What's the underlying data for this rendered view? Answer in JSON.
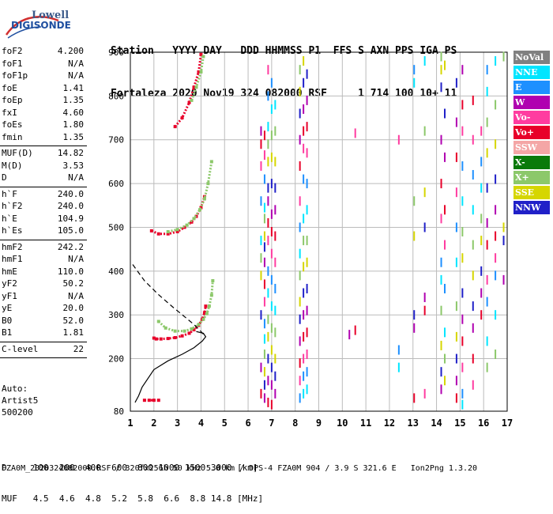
{
  "logo": {
    "line1": "Lowell",
    "line2": "DIGISONDE"
  },
  "header": {
    "row1": "Station   YYYY DAY   DDD HHMMSS P1  FFS S AXN PPS IGA PS",
    "row2": "Fortaleza 2020 Nov19 324 082000 RSF     1 714 100 10+ 11"
  },
  "params": {
    "group1": [
      {
        "label": "foF2",
        "value": "4.200"
      },
      {
        "label": "foF1",
        "value": "N/A"
      },
      {
        "label": "foF1p",
        "value": "N/A"
      },
      {
        "label": "foE",
        "value": "1.41"
      },
      {
        "label": "foEp",
        "value": "1.35"
      },
      {
        "label": "fxI",
        "value": "4.60"
      },
      {
        "label": "foEs",
        "value": "1.80"
      },
      {
        "label": "fmin",
        "value": "1.35"
      }
    ],
    "group2": [
      {
        "label": "MUF(D)",
        "value": "14.82"
      },
      {
        "label": "M(D)",
        "value": "3.53"
      },
      {
        "label": "D",
        "value": "N/A"
      }
    ],
    "group3": [
      {
        "label": "h`F",
        "value": "240.0"
      },
      {
        "label": "h`F2",
        "value": "240.0"
      },
      {
        "label": "h`E",
        "value": "104.9"
      },
      {
        "label": "h`Es",
        "value": "105.0"
      }
    ],
    "group4": [
      {
        "label": "hmF2",
        "value": "242.2"
      },
      {
        "label": "hmF1",
        "value": "N/A"
      },
      {
        "label": "hmE",
        "value": "110.0"
      },
      {
        "label": "yF2",
        "value": "50.2"
      },
      {
        "label": "yF1",
        "value": "N/A"
      },
      {
        "label": "yE",
        "value": "20.0"
      },
      {
        "label": "B0",
        "value": "52.0"
      },
      {
        "label": "B1",
        "value": "1.81"
      }
    ],
    "group5": [
      {
        "label": "C-level",
        "value": "22"
      }
    ]
  },
  "auto": {
    "line1": "Auto:",
    "line2": "Artist5",
    "line3": "500200"
  },
  "legend": [
    {
      "label": "NoVal",
      "color": "#808080"
    },
    {
      "label": "NNE",
      "color": "#00e5ff"
    },
    {
      "label": "E",
      "color": "#1e90ff"
    },
    {
      "label": "W",
      "color": "#b000b0"
    },
    {
      "label": "Vo-",
      "color": "#ff3ca0"
    },
    {
      "label": "Vo+",
      "color": "#e8002a"
    },
    {
      "label": "SSW",
      "color": "#f4a6a6"
    },
    {
      "label": "X-",
      "color": "#0a7a0a"
    },
    {
      "label": "X+",
      "color": "#8cc86a"
    },
    {
      "label": "SSE",
      "color": "#d6d600"
    },
    {
      "label": "NNW",
      "color": "#2020c8"
    }
  ],
  "bottom": {
    "line1": "D     100  200  400  600  800 1000 1500 3000 [km]",
    "line2": "MUF   4.5  4.6  4.8  5.2  5.8  6.6  8.8 14.8 [MHz]"
  },
  "footer": "FZA0M_2020324082000.RSF / 320fx256h 50 kHz 5.0 km / DPS-4 FZA0M 904 / 3.9 S 321.6 E   Ion2Png 1.3.20",
  "chart_data": {
    "type": "scatter",
    "xlabel": "",
    "ylabel": "",
    "xlim": [
      1,
      17
    ],
    "ylim": [
      80,
      900
    ],
    "xticks": [
      1,
      2,
      3,
      4,
      5,
      6,
      7,
      8,
      9,
      10,
      11,
      12,
      13,
      14,
      15,
      16,
      17
    ],
    "yticks": [
      80,
      200,
      300,
      400,
      500,
      600,
      700,
      800,
      900
    ],
    "grid": true,
    "traces": [
      {
        "name": "F2 O-trace",
        "color": "#e8002a",
        "x": [
          2.0,
          2.1,
          2.3,
          2.6,
          2.9,
          3.2,
          3.5,
          3.7,
          3.9,
          4.05,
          4.15,
          4.2
        ],
        "y": [
          247,
          245,
          245,
          246,
          248,
          252,
          258,
          266,
          276,
          290,
          305,
          320
        ]
      },
      {
        "name": "F2 X-trace",
        "color": "#8cc86a",
        "x": [
          2.2,
          2.5,
          2.9,
          3.3,
          3.6,
          3.9,
          4.1,
          4.25,
          4.35,
          4.45,
          4.5
        ],
        "y": [
          285,
          270,
          263,
          263,
          268,
          278,
          290,
          303,
          320,
          345,
          378
        ]
      },
      {
        "name": "F2 2nd hop O",
        "color": "#e8002a",
        "x": [
          1.9,
          2.2,
          2.6,
          3.0,
          3.3,
          3.6,
          3.8,
          4.0,
          4.15
        ],
        "y": [
          492,
          485,
          485,
          490,
          500,
          512,
          525,
          545,
          570
        ]
      },
      {
        "name": "F2 2nd hop X",
        "color": "#8cc86a",
        "x": [
          2.6,
          3.0,
          3.4,
          3.7,
          3.95,
          4.15,
          4.3,
          4.45
        ],
        "y": [
          490,
          495,
          505,
          520,
          540,
          565,
          600,
          650
        ]
      },
      {
        "name": "F2 3rd hop O",
        "color": "#e8002a",
        "x": [
          2.9,
          3.2,
          3.5,
          3.7,
          3.9,
          4.0
        ],
        "y": [
          730,
          750,
          785,
          820,
          855,
          895
        ]
      },
      {
        "name": "F2 3rd hop X",
        "color": "#8cc86a",
        "x": [
          3.6,
          3.8,
          4.0,
          4.1
        ],
        "y": [
          790,
          820,
          855,
          890
        ]
      },
      {
        "name": "Es",
        "color": "#e8002a",
        "x": [
          1.6,
          1.8,
          2.0,
          2.2
        ],
        "y": [
          105,
          105,
          105,
          105
        ]
      }
    ],
    "profile": {
      "x": [
        1.2,
        1.35,
        1.5,
        2.0,
        2.6,
        3.2,
        3.7,
        4.05,
        4.2,
        4.1,
        3.8
      ],
      "y": [
        100,
        115,
        135,
        175,
        195,
        210,
        225,
        240,
        250,
        258,
        262
      ]
    },
    "ordinary_trace_model": {
      "x": [
        1.1,
        1.6,
        2.2,
        2.8,
        3.3,
        3.7,
        4.0,
        4.2
      ],
      "y": [
        415,
        378,
        346,
        318,
        296,
        278,
        262,
        250
      ]
    },
    "noise_columns": [
      {
        "x": 6.55,
        "y": [
          720,
          690,
          640,
          560,
          470,
          430,
          390,
          300,
          180,
          120
        ]
      },
      {
        "x": 6.7,
        "y": [
          710,
          665,
          610,
          545,
          520,
          480,
          455,
          420,
          370,
          330,
          280,
          245,
          210,
          170,
          140,
          110
        ]
      },
      {
        "x": 6.85,
        "y": [
          860,
          800,
          730,
          690,
          650,
          590,
          560,
          510,
          470,
          400,
          350,
          290,
          250,
          200,
          150,
          100
        ]
      },
      {
        "x": 7.0,
        "y": [
          830,
          770,
          710,
          660,
          600,
          530,
          490,
          440,
          380,
          320,
          270,
          220,
          180,
          140,
          95
        ]
      },
      {
        "x": 7.15,
        "y": [
          780,
          720,
          650,
          590,
          540,
          480,
          420,
          360,
          310,
          260,
          200,
          160,
          120
        ]
      },
      {
        "x": 8.2,
        "y": [
          860,
          810,
          760,
          700,
          640,
          560,
          500,
          440,
          390,
          330,
          290,
          240,
          190,
          150,
          110
        ]
      },
      {
        "x": 8.35,
        "y": [
          880,
          830,
          770,
          720,
          680,
          610,
          520,
          470,
          410,
          350,
          300,
          250,
          200,
          160,
          120
        ]
      },
      {
        "x": 8.5,
        "y": [
          850,
          790,
          730,
          670,
          600,
          540,
          470,
          420,
          360,
          310,
          260,
          210,
          170,
          130
        ]
      },
      {
        "x": 10.3,
        "y": [
          255
        ]
      },
      {
        "x": 10.55,
        "y": [
          265,
          715
        ]
      },
      {
        "x": 12.4,
        "y": [
          700,
          220,
          180
        ]
      },
      {
        "x": 13.05,
        "y": [
          860,
          830,
          560,
          480,
          300,
          270,
          110
        ]
      },
      {
        "x": 13.5,
        "y": [
          880,
          720,
          580,
          500,
          340,
          310,
          120
        ]
      },
      {
        "x": 14.2,
        "y": [
          890,
          860,
          820,
          700,
          600,
          520,
          420,
          380,
          310,
          230,
          170,
          130
        ]
      },
      {
        "x": 14.35,
        "y": [
          870,
          760,
          660,
          540,
          460,
          360,
          260,
          200,
          150
        ]
      },
      {
        "x": 14.85,
        "y": [
          830,
          740,
          660,
          580,
          500,
          420,
          320,
          250,
          200,
          150,
          110
        ]
      },
      {
        "x": 15.1,
        "y": [
          860,
          780,
          720,
          640,
          560,
          490,
          430,
          350,
          290,
          240,
          180,
          120,
          95
        ]
      },
      {
        "x": 15.55,
        "y": [
          790,
          700,
          620,
          540,
          460,
          390,
          320,
          270,
          200,
          140
        ]
      },
      {
        "x": 15.9,
        "y": [
          720,
          650,
          590,
          520,
          470,
          400,
          350,
          300
        ]
      },
      {
        "x": 16.15,
        "y": [
          860,
          810,
          740,
          670,
          590,
          510,
          460,
          380,
          330,
          240,
          180
        ]
      },
      {
        "x": 16.5,
        "y": [
          880,
          780,
          690,
          610,
          540,
          480,
          430,
          390,
          300,
          210
        ]
      },
      {
        "x": 16.85,
        "y": [
          890,
          500,
          470,
          380
        ]
      }
    ]
  }
}
